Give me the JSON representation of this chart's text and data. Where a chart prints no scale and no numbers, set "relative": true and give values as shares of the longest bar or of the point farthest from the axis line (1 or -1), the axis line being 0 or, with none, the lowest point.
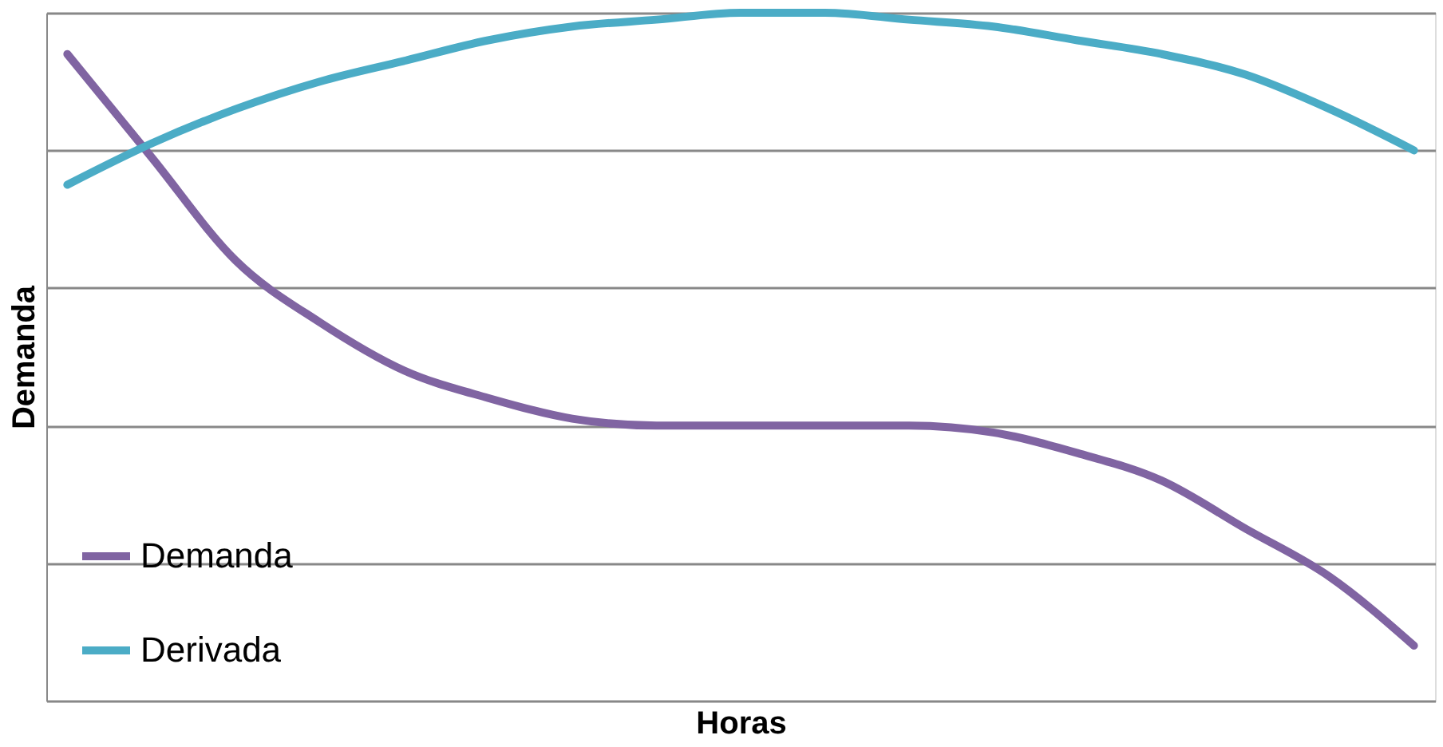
{
  "chart_data": {
    "type": "line",
    "relative": true,
    "xlabel": "Horas",
    "ylabel": "Demanda",
    "grid": "y",
    "legend": "bottom left",
    "marker": "none",
    "line_style": "solid",
    "categories": [
      null,
      null,
      null,
      null,
      null,
      null,
      null,
      null,
      null,
      null,
      null,
      null,
      null,
      null,
      null,
      null,
      null
    ],
    "series": [
      {
        "name": "Demanda",
        "color": "#8064a2",
        "values": [
          0.94,
          0.79,
          0.64,
          0.55,
          0.48,
          0.44,
          0.41,
          0.4,
          0.4,
          0.4,
          0.4,
          0.39,
          0.36,
          0.32,
          0.25,
          0.18,
          0.08
        ]
      },
      {
        "name": "Derivada",
        "color": "#4bacc6",
        "values": [
          0.75,
          0.81,
          0.86,
          0.9,
          0.93,
          0.96,
          0.98,
          0.99,
          1.0,
          1.0,
          0.99,
          0.98,
          0.96,
          0.94,
          0.91,
          0.86,
          0.8
        ]
      }
    ]
  }
}
